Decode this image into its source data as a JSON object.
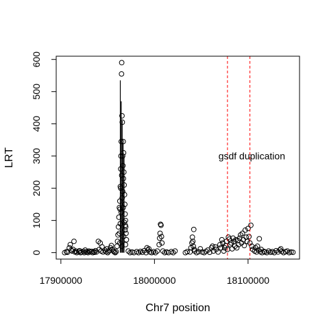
{
  "chart_data": {
    "type": "scatter",
    "title": "",
    "xlabel": "Chr7 position",
    "ylabel": "LRT",
    "xlim": [
      17895000,
      18155000
    ],
    "ylim": [
      -20,
      610
    ],
    "x_ticks": [
      17900000,
      18000000,
      18100000
    ],
    "x_tick_labels": [
      "17900000",
      "18000000",
      "18100000"
    ],
    "y_ticks": [
      0,
      100,
      200,
      300,
      400,
      500,
      600
    ],
    "y_tick_labels": [
      "0",
      "100",
      "200",
      "300",
      "400",
      "500",
      "600"
    ],
    "grid": false,
    "point_style": "open-circle",
    "line_color": "#000000",
    "annotation": {
      "text": "gsdf duplication",
      "x": 18104000,
      "y": 300,
      "color": "#000000"
    },
    "vlines": [
      {
        "x": 18078000,
        "color": "#ff0000",
        "style": "dashed"
      },
      {
        "x": 18102000,
        "color": "#ff0000",
        "style": "dashed"
      }
    ],
    "spike_lines": [
      {
        "x": 17963500,
        "y0": 0,
        "y1": 535
      },
      {
        "x": 17964500,
        "y0": 0,
        "y1": 470
      },
      {
        "x": 17965500,
        "y0": 0,
        "y1": 410
      },
      {
        "x": 17966500,
        "y0": 0,
        "y1": 340
      },
      {
        "x": 17967500,
        "y0": 0,
        "y1": 300
      }
    ],
    "points": [
      [
        17904000,
        0
      ],
      [
        17906000,
        3
      ],
      [
        17907000,
        1
      ],
      [
        17909000,
        15
      ],
      [
        17910000,
        25
      ],
      [
        17911000,
        8
      ],
      [
        17912000,
        5
      ],
      [
        17913000,
        10
      ],
      [
        17914000,
        35
      ],
      [
        17915000,
        2
      ],
      [
        17916000,
        5
      ],
      [
        17917000,
        0
      ],
      [
        17919000,
        3
      ],
      [
        17920000,
        6
      ],
      [
        17921000,
        0
      ],
      [
        17922000,
        2
      ],
      [
        17924000,
        4
      ],
      [
        17925000,
        0
      ],
      [
        17926000,
        8
      ],
      [
        17927000,
        2
      ],
      [
        17928000,
        3
      ],
      [
        17929000,
        0
      ],
      [
        17930000,
        5
      ],
      [
        17931000,
        2
      ],
      [
        17933000,
        4
      ],
      [
        17934000,
        0
      ],
      [
        17935000,
        3
      ],
      [
        17936000,
        1
      ],
      [
        17937000,
        6
      ],
      [
        17938000,
        2
      ],
      [
        17940000,
        35
      ],
      [
        17941000,
        10
      ],
      [
        17942000,
        30
      ],
      [
        17943000,
        5
      ],
      [
        17944000,
        18
      ],
      [
        17945000,
        2
      ],
      [
        17947000,
        8
      ],
      [
        17948000,
        3
      ],
      [
        17949000,
        12
      ],
      [
        17950000,
        0
      ],
      [
        17951000,
        4
      ],
      [
        17952000,
        7
      ],
      [
        17953000,
        15
      ],
      [
        17954000,
        22
      ],
      [
        17955000,
        10
      ],
      [
        17956000,
        5
      ],
      [
        17957000,
        2
      ],
      [
        17958000,
        0
      ],
      [
        17959000,
        3
      ],
      [
        17960000,
        20
      ],
      [
        17960500,
        35
      ],
      [
        17961000,
        55
      ],
      [
        17961500,
        80
      ],
      [
        17962000,
        110
      ],
      [
        17962500,
        140
      ],
      [
        17963000,
        160
      ],
      [
        17963500,
        205
      ],
      [
        17964000,
        260
      ],
      [
        17964200,
        300
      ],
      [
        17964500,
        345
      ],
      [
        17964800,
        555
      ],
      [
        17965000,
        590
      ],
      [
        17965300,
        425
      ],
      [
        17965600,
        405
      ],
      [
        17966000,
        300
      ],
      [
        17966300,
        270
      ],
      [
        17966600,
        345
      ],
      [
        17967000,
        310
      ],
      [
        17967300,
        250
      ],
      [
        17967600,
        210
      ],
      [
        17968000,
        180
      ],
      [
        17968300,
        150
      ],
      [
        17968600,
        120
      ],
      [
        17969000,
        100
      ],
      [
        17969300,
        80
      ],
      [
        17969600,
        60
      ],
      [
        17970000,
        40
      ],
      [
        17962500,
        60
      ],
      [
        17963500,
        90
      ],
      [
        17964500,
        125
      ],
      [
        17965500,
        170
      ],
      [
        17966500,
        140
      ],
      [
        17967500,
        95
      ],
      [
        17968500,
        70
      ],
      [
        17963000,
        30
      ],
      [
        17965000,
        20
      ],
      [
        17967000,
        50
      ],
      [
        17969000,
        25
      ],
      [
        17964000,
        200
      ],
      [
        17966000,
        190
      ],
      [
        17965000,
        240
      ],
      [
        17966800,
        230
      ],
      [
        17963200,
        135
      ],
      [
        17968800,
        85
      ],
      [
        17972000,
        5
      ],
      [
        17974000,
        0
      ],
      [
        17976000,
        2
      ],
      [
        17978000,
        0
      ],
      [
        17981000,
        3
      ],
      [
        17983000,
        0
      ],
      [
        17985000,
        4
      ],
      [
        17987000,
        1
      ],
      [
        17989000,
        6
      ],
      [
        17991000,
        0
      ],
      [
        17992000,
        15
      ],
      [
        17993000,
        8
      ],
      [
        17994000,
        12
      ],
      [
        17995000,
        2
      ],
      [
        17997000,
        0
      ],
      [
        17999000,
        3
      ],
      [
        18001000,
        0
      ],
      [
        18003000,
        5
      ],
      [
        18005000,
        25
      ],
      [
        18005500,
        45
      ],
      [
        18006000,
        60
      ],
      [
        18006500,
        88
      ],
      [
        18007000,
        85
      ],
      [
        18007500,
        50
      ],
      [
        18008000,
        30
      ],
      [
        18009000,
        5
      ],
      [
        18011000,
        0
      ],
      [
        18013000,
        2
      ],
      [
        18015000,
        0
      ],
      [
        18018000,
        3
      ],
      [
        18020000,
        0
      ],
      [
        18022000,
        5
      ],
      [
        18033000,
        0
      ],
      [
        18035000,
        3
      ],
      [
        18038000,
        2
      ],
      [
        18039000,
        15
      ],
      [
        18040000,
        30
      ],
      [
        18040500,
        48
      ],
      [
        18041000,
        35
      ],
      [
        18041500,
        20
      ],
      [
        18042000,
        72
      ],
      [
        18042500,
        10
      ],
      [
        18043000,
        5
      ],
      [
        18045000,
        0
      ],
      [
        18047000,
        3
      ],
      [
        18049000,
        12
      ],
      [
        18051000,
        2
      ],
      [
        18053000,
        0
      ],
      [
        18055000,
        4
      ],
      [
        18057000,
        8
      ],
      [
        18059000,
        1
      ],
      [
        18061000,
        15
      ],
      [
        18062000,
        20
      ],
      [
        18063000,
        5
      ],
      [
        18065000,
        18
      ],
      [
        18066000,
        10
      ],
      [
        18068000,
        2
      ],
      [
        18070000,
        25
      ],
      [
        18071000,
        15
      ],
      [
        18072000,
        40
      ],
      [
        18073000,
        30
      ],
      [
        18074000,
        5
      ],
      [
        18075000,
        15
      ],
      [
        18076000,
        22
      ],
      [
        18077000,
        35
      ],
      [
        18078000,
        10
      ],
      [
        18079000,
        48
      ],
      [
        18080000,
        42
      ],
      [
        18081000,
        25
      ],
      [
        18082000,
        30
      ],
      [
        18083000,
        12
      ],
      [
        18084000,
        45
      ],
      [
        18085000,
        35
      ],
      [
        18086000,
        20
      ],
      [
        18087000,
        40
      ],
      [
        18088000,
        15
      ],
      [
        18089000,
        38
      ],
      [
        18090000,
        25
      ],
      [
        18091000,
        45
      ],
      [
        18092000,
        55
      ],
      [
        18093000,
        30
      ],
      [
        18094000,
        60
      ],
      [
        18095000,
        40
      ],
      [
        18096000,
        22
      ],
      [
        18097000,
        70
      ],
      [
        18098000,
        48
      ],
      [
        18099000,
        35
      ],
      [
        18100000,
        75
      ],
      [
        18101000,
        50
      ],
      [
        18102000,
        30
      ],
      [
        18103000,
        85
      ],
      [
        18104000,
        20
      ],
      [
        18105000,
        10
      ],
      [
        18107000,
        5
      ],
      [
        18108000,
        15
      ],
      [
        18109000,
        2
      ],
      [
        18110000,
        20
      ],
      [
        18111000,
        8
      ],
      [
        18112000,
        43
      ],
      [
        18113000,
        3
      ],
      [
        18114000,
        10
      ],
      [
        18115000,
        0
      ],
      [
        18117000,
        4
      ],
      [
        18118000,
        2
      ],
      [
        18120000,
        0
      ],
      [
        18122000,
        5
      ],
      [
        18124000,
        1
      ],
      [
        18126000,
        3
      ],
      [
        18128000,
        0
      ],
      [
        18130000,
        6
      ],
      [
        18132000,
        2
      ],
      [
        18134000,
        8
      ],
      [
        18135000,
        12
      ],
      [
        18136000,
        4
      ],
      [
        18138000,
        0
      ],
      [
        18140000,
        3
      ],
      [
        18142000,
        5
      ],
      [
        18144000,
        0
      ],
      [
        18146000,
        2
      ],
      [
        18148000,
        1
      ]
    ]
  }
}
